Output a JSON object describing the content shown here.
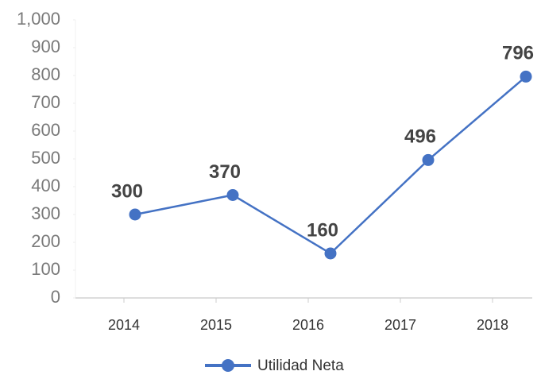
{
  "chart_data": {
    "type": "line",
    "categories": [
      "2014",
      "2015",
      "2016",
      "2017",
      "2018"
    ],
    "series": [
      {
        "name": "Utilidad Neta",
        "color": "#4472c4",
        "values": [
          300,
          370,
          160,
          496,
          796
        ]
      }
    ],
    "ylim": [
      0,
      1000
    ],
    "yticks": [
      0,
      100,
      200,
      300,
      400,
      500,
      600,
      700,
      800,
      900,
      {
        "value": 1000,
        "label": "1,000"
      }
    ],
    "legend": "bottom"
  }
}
